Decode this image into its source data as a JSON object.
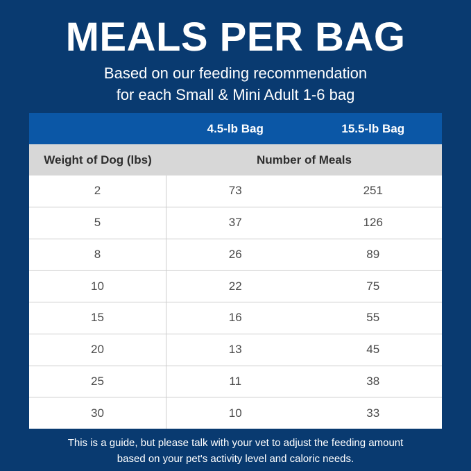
{
  "colors": {
    "background": "#093a70",
    "header_band": "#0b57a6",
    "subheader_band": "#d7d7d7",
    "row_bg": "#ffffff",
    "row_border": "#cccccc",
    "body_text": "#4a4a4a",
    "subheader_text": "#2d2d2d",
    "text_white": "#ffffff"
  },
  "header": {
    "title": "MEALS PER BAG",
    "subtitle_line1": "Based on our feeding recommendation",
    "subtitle_line2": "for each Small & Mini Adult 1-6 bag"
  },
  "table": {
    "bag_columns": [
      "4.5-lb Bag",
      "15.5-lb Bag"
    ],
    "weight_header": "Weight of Dog (lbs)",
    "meals_header": "Number of Meals",
    "rows": [
      {
        "weight": "2",
        "meals_4_5_lb": "73",
        "meals_15_5_lb": "251"
      },
      {
        "weight": "5",
        "meals_4_5_lb": "37",
        "meals_15_5_lb": "126"
      },
      {
        "weight": "8",
        "meals_4_5_lb": "26",
        "meals_15_5_lb": "89"
      },
      {
        "weight": "10",
        "meals_4_5_lb": "22",
        "meals_15_5_lb": "75"
      },
      {
        "weight": "15",
        "meals_4_5_lb": "16",
        "meals_15_5_lb": "55"
      },
      {
        "weight": "20",
        "meals_4_5_lb": "13",
        "meals_15_5_lb": "45"
      },
      {
        "weight": "25",
        "meals_4_5_lb": "11",
        "meals_15_5_lb": "38"
      },
      {
        "weight": "30",
        "meals_4_5_lb": "10",
        "meals_15_5_lb": "33"
      }
    ]
  },
  "footer": {
    "line1": "This is a guide, but please talk with your vet to adjust the feeding amount",
    "line2": "based on your pet's activity level and caloric needs."
  },
  "chart_data": {
    "type": "table",
    "title": "MEALS PER BAG",
    "subtitle": "Based on our feeding recommendation for each Small & Mini Adult 1-6 bag",
    "columns": [
      "Weight of Dog (lbs)",
      "4.5-lb Bag (Number of Meals)",
      "15.5-lb Bag (Number of Meals)"
    ],
    "rows": [
      [
        2,
        73,
        251
      ],
      [
        5,
        37,
        126
      ],
      [
        8,
        26,
        89
      ],
      [
        10,
        22,
        75
      ],
      [
        15,
        16,
        55
      ],
      [
        20,
        13,
        45
      ],
      [
        25,
        11,
        38
      ],
      [
        30,
        10,
        33
      ]
    ],
    "note": "This is a guide, but please talk with your vet to adjust the feeding amount based on your pet's activity level and caloric needs."
  }
}
